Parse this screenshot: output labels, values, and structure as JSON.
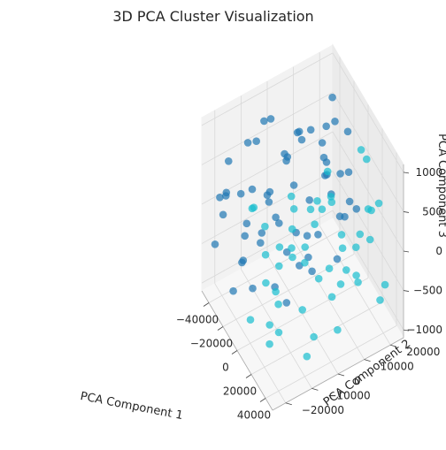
{
  "chart_data": {
    "type": "scatter",
    "projection": "3d",
    "title": "3D PCA Cluster Visualization",
    "xlabel": "PCA Component 1",
    "ylabel": "PCA Component 2",
    "zlabel": "PCA Component 3",
    "xlim": [
      -50000,
      50000
    ],
    "ylim": [
      -25000,
      25000
    ],
    "zlim": [
      -1100,
      1100
    ],
    "xticks": [
      -40000,
      -20000,
      0,
      20000,
      40000
    ],
    "yticks": [
      -20000,
      -10000,
      0,
      10000,
      20000
    ],
    "zticks": [
      -1000,
      -500,
      0,
      500,
      1000
    ],
    "grid": true,
    "colors": {
      "cluster_0": "#1f77b4",
      "cluster_1": "#17becf"
    },
    "points": [
      [
        -42000,
        -10000,
        -400,
        0
      ],
      [
        -40000,
        5000,
        200,
        0
      ],
      [
        -38000,
        -18000,
        600,
        0
      ],
      [
        -38000,
        12000,
        -900,
        0
      ],
      [
        -36000,
        -5000,
        900,
        0
      ],
      [
        -35000,
        18000,
        -200,
        0
      ],
      [
        -34000,
        -14000,
        -700,
        0
      ],
      [
        -33000,
        2000,
        400,
        0
      ],
      [
        -32000,
        20000,
        800,
        0
      ],
      [
        -31000,
        -22000,
        100,
        0
      ],
      [
        -30000,
        -8000,
        -500,
        0
      ],
      [
        -29000,
        10000,
        -1000,
        0
      ],
      [
        -28000,
        -16000,
        300,
        0
      ],
      [
        -27000,
        6000,
        700,
        0
      ],
      [
        -26000,
        -2000,
        -300,
        0
      ],
      [
        -25000,
        16000,
        0,
        0
      ],
      [
        -24000,
        -20000,
        -800,
        0
      ],
      [
        -23000,
        0,
        500,
        0
      ],
      [
        -22000,
        22000,
        -600,
        0
      ],
      [
        -21000,
        -12000,
        1000,
        0
      ],
      [
        -20000,
        8000,
        -100,
        0
      ],
      [
        -19000,
        -24000,
        600,
        0
      ],
      [
        -18000,
        14000,
        300,
        0
      ],
      [
        -17000,
        -6000,
        -900,
        0
      ],
      [
        -16000,
        4000,
        800,
        0
      ],
      [
        -15000,
        -18000,
        0,
        0
      ],
      [
        -14000,
        18000,
        -400,
        0
      ],
      [
        -13000,
        -10000,
        400,
        0
      ],
      [
        -12000,
        2000,
        -700,
        0
      ],
      [
        -11000,
        12000,
        900,
        0
      ],
      [
        -10000,
        -20000,
        -200,
        0
      ],
      [
        -9000,
        20000,
        200,
        0
      ],
      [
        -8000,
        -4000,
        -1000,
        0
      ],
      [
        -7000,
        10000,
        600,
        0
      ],
      [
        -6000,
        -14000,
        100,
        0
      ],
      [
        -44000,
        15000,
        300,
        0
      ],
      [
        -43000,
        -20000,
        100,
        0
      ],
      [
        -41000,
        22000,
        -600,
        0
      ],
      [
        -39000,
        -2000,
        -100,
        0
      ],
      [
        -37000,
        8000,
        500,
        0
      ],
      [
        -33000,
        -12000,
        800,
        0
      ],
      [
        -30000,
        14000,
        -800,
        0
      ],
      [
        -27000,
        -22000,
        400,
        0
      ],
      [
        -24000,
        4000,
        -500,
        0
      ],
      [
        -21000,
        18000,
        700,
        0
      ],
      [
        -18000,
        -8000,
        200,
        0
      ],
      [
        -15000,
        22000,
        -300,
        0
      ],
      [
        -12000,
        -16000,
        600,
        0
      ],
      [
        -9000,
        6000,
        -800,
        0
      ],
      [
        -6000,
        16000,
        300,
        0
      ],
      [
        -4000,
        -18000,
        -500,
        0
      ],
      [
        -2000,
        8000,
        900,
        0
      ],
      [
        0,
        -6000,
        -200,
        0
      ],
      [
        -45000,
        0,
        700,
        0
      ],
      [
        -35000,
        -24000,
        -300,
        0
      ],
      [
        -25000,
        24000,
        400,
        0
      ],
      [
        -5000,
        -2000,
        500,
        0
      ],
      [
        -3000,
        14000,
        -700,
        0
      ],
      [
        -1000,
        -10000,
        300,
        0
      ],
      [
        2000,
        20000,
        -100,
        0
      ],
      [
        6000,
        -16000,
        400,
        1
      ],
      [
        8000,
        4000,
        -600,
        1
      ],
      [
        10000,
        -22000,
        800,
        1
      ],
      [
        12000,
        12000,
        -300,
        1
      ],
      [
        14000,
        -8000,
        100,
        1
      ],
      [
        16000,
        18000,
        900,
        1
      ],
      [
        18000,
        -14000,
        -800,
        1
      ],
      [
        20000,
        2000,
        500,
        1
      ],
      [
        22000,
        -20000,
        0,
        1
      ],
      [
        24000,
        14000,
        -500,
        1
      ],
      [
        26000,
        -4000,
        700,
        1
      ],
      [
        28000,
        22000,
        -900,
        1
      ],
      [
        30000,
        -12000,
        300,
        1
      ],
      [
        32000,
        8000,
        -200,
        1
      ],
      [
        34000,
        -18000,
        600,
        1
      ],
      [
        36000,
        16000,
        100,
        1
      ],
      [
        38000,
        -6000,
        -700,
        1
      ],
      [
        40000,
        0,
        1000,
        1
      ],
      [
        42000,
        -24000,
        -400,
        1
      ],
      [
        44000,
        10000,
        400,
        1
      ],
      [
        4000,
        10000,
        200,
        1
      ],
      [
        7000,
        -2000,
        -900,
        1
      ],
      [
        9000,
        22000,
        600,
        1
      ],
      [
        11000,
        -12000,
        -100,
        1
      ],
      [
        13000,
        6000,
        800,
        1
      ],
      [
        15000,
        -24000,
        -500,
        1
      ],
      [
        17000,
        0,
        300,
        1
      ],
      [
        19000,
        16000,
        -700,
        1
      ],
      [
        21000,
        -10000,
        900,
        1
      ],
      [
        23000,
        20000,
        200,
        1
      ],
      [
        25000,
        -16000,
        -300,
        1
      ],
      [
        27000,
        6000,
        -1000,
        1
      ],
      [
        29000,
        -22000,
        500,
        1
      ],
      [
        31000,
        12000,
        0,
        1
      ],
      [
        33000,
        -8000,
        400,
        1
      ],
      [
        35000,
        22000,
        -600,
        1
      ],
      [
        37000,
        -14000,
        800,
        1
      ],
      [
        39000,
        4000,
        -200,
        1
      ],
      [
        41000,
        18000,
        600,
        1
      ],
      [
        43000,
        -10000,
        -800,
        1
      ],
      [
        45000,
        -2000,
        200,
        1
      ],
      [
        5000,
        -20000,
        700,
        1
      ],
      [
        3000,
        0,
        -400,
        1
      ],
      [
        18000,
        10000,
        0,
        1
      ],
      [
        26000,
        18000,
        300,
        1
      ],
      [
        34000,
        2000,
        -400,
        1
      ],
      [
        10000,
        -6000,
        500,
        1
      ],
      [
        20000,
        -18000,
        -600,
        1
      ],
      [
        28000,
        -2000,
        800,
        1
      ],
      [
        36000,
        -20000,
        100,
        1
      ]
    ]
  }
}
